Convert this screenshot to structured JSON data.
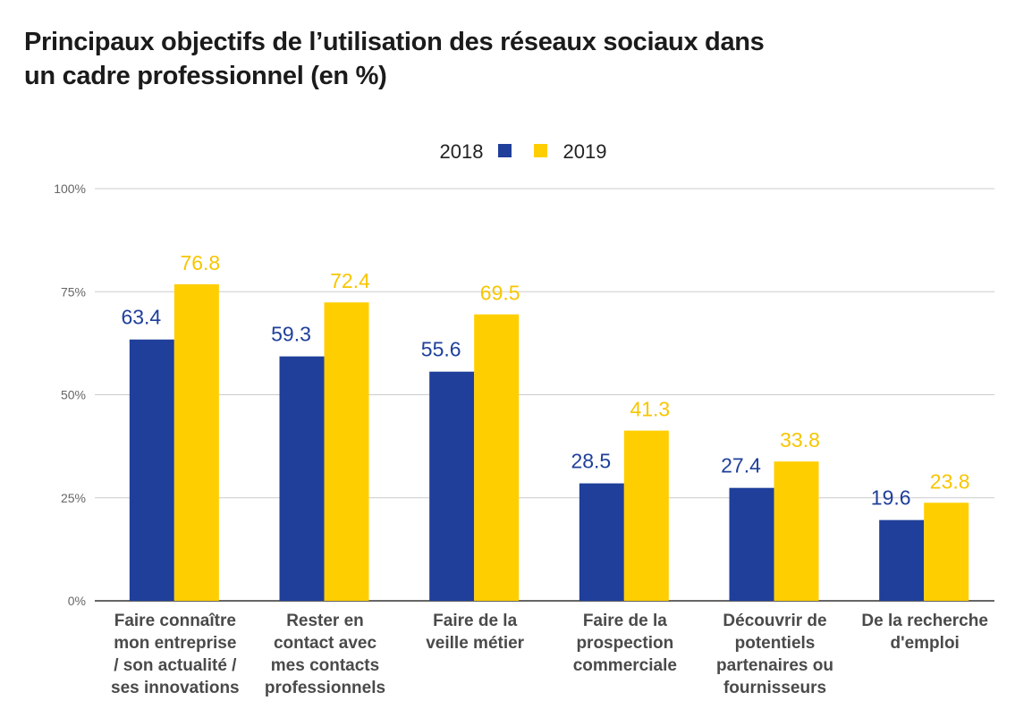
{
  "chart_data": {
    "type": "bar",
    "title": [
      "Principaux objectifs de l’utilisation des réseaux sociaux dans",
      "un cadre professionnel (en %)"
    ],
    "legend_position": "top-center",
    "grid": true,
    "ylim": [
      0,
      100
    ],
    "yticks": [
      {
        "value": 0,
        "label": "0%"
      },
      {
        "value": 25,
        "label": "25%"
      },
      {
        "value": 50,
        "label": "50%"
      },
      {
        "value": 75,
        "label": "75%"
      },
      {
        "value": 100,
        "label": "100%"
      }
    ],
    "categories": [
      [
        "Faire connaître",
        "mon entreprise",
        "/ son actualité /",
        "ses innovations"
      ],
      [
        "Rester en",
        "contact avec",
        "mes contacts",
        "professionnels"
      ],
      [
        "Faire de la",
        "veille métier"
      ],
      [
        "Faire de la",
        "prospection",
        "commerciale"
      ],
      [
        "Découvrir de",
        "potentiels",
        "partenaires ou",
        "fournisseurs"
      ],
      [
        "De la recherche",
        "d'emploi"
      ]
    ],
    "series": [
      {
        "name": "2018",
        "color": "#1f3f9a",
        "values": [
          63.4,
          59.3,
          55.6,
          28.5,
          27.4,
          19.6
        ]
      },
      {
        "name": "2019",
        "color": "#ffce00",
        "values": [
          76.8,
          72.4,
          69.5,
          41.3,
          33.8,
          23.8
        ]
      }
    ]
  }
}
